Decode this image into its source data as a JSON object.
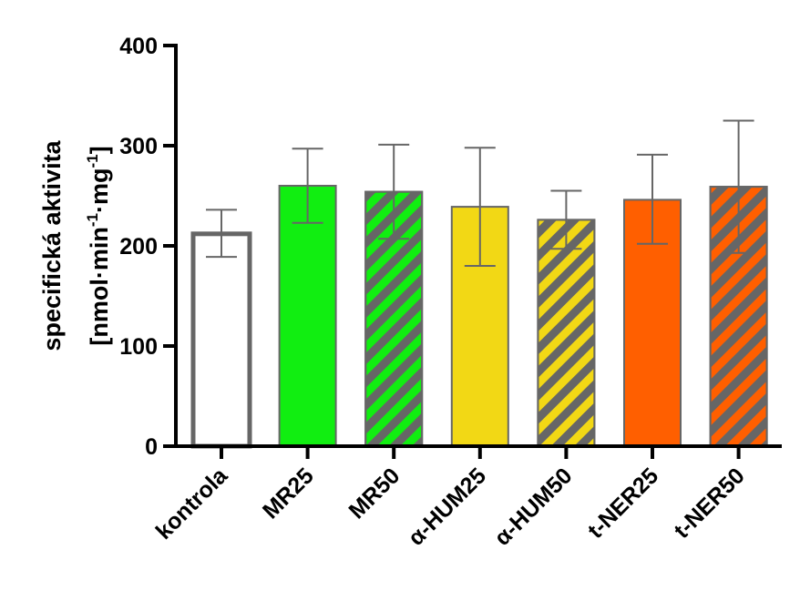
{
  "chart_data": {
    "type": "bar",
    "ylabel_line1": "specifická aktivita",
    "ylabel_line2_parts": [
      "[nmol·min",
      "-1",
      "·mg",
      "-1",
      "]"
    ],
    "ylim": [
      0,
      400
    ],
    "yticks": [
      0,
      100,
      200,
      300,
      400
    ],
    "ytick_labels": [
      "0",
      "100",
      "200",
      "300",
      "400"
    ],
    "categories": [
      "kontrola",
      "MR25",
      "MR50",
      "α-HUM25",
      "α-HUM50",
      "t-NER25",
      "t-NER50"
    ],
    "values": [
      212,
      260,
      254,
      239,
      226,
      246,
      259
    ],
    "error_low": [
      189,
      223,
      207,
      180,
      197,
      202,
      193
    ],
    "error_high": [
      236,
      297,
      301,
      298,
      255,
      291,
      325
    ],
    "colors": [
      "#ffffff",
      "#11ee11",
      "#11ee11",
      "#f2d815",
      "#f2d815",
      "#ff5f00",
      "#ff5f00"
    ],
    "hatched": [
      false,
      false,
      true,
      false,
      true,
      false,
      true
    ],
    "hatch_color": "#666666",
    "outline_color": "#666666",
    "grid": false,
    "legend": "none"
  }
}
